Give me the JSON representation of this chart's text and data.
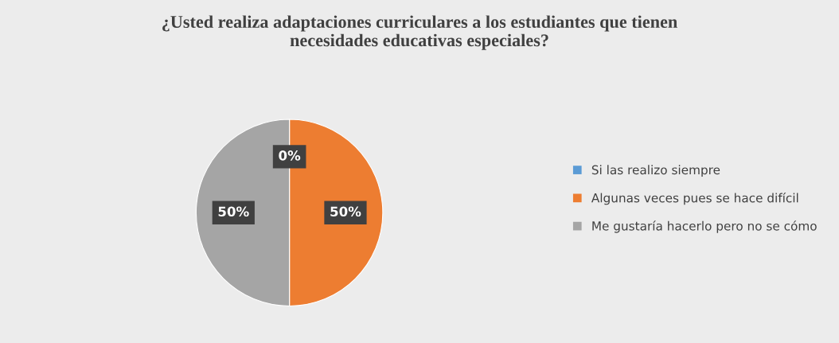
{
  "chart_data": {
    "type": "pie",
    "title": "¿Usted realiza adaptaciones curriculares a los estudiantes que tienen\nnecesidades educativas especiales?",
    "categories": [
      "Si las realizo siempre",
      "Algunas veces pues se hace difícil",
      "Me gustaría hacerlo pero no se cómo"
    ],
    "values": [
      0,
      50,
      50
    ],
    "colors": [
      "#5b9bd5",
      "#ed7d31",
      "#a5a5a5"
    ],
    "value_labels": [
      "0%",
      "50%",
      "50%"
    ],
    "legend": "right"
  }
}
